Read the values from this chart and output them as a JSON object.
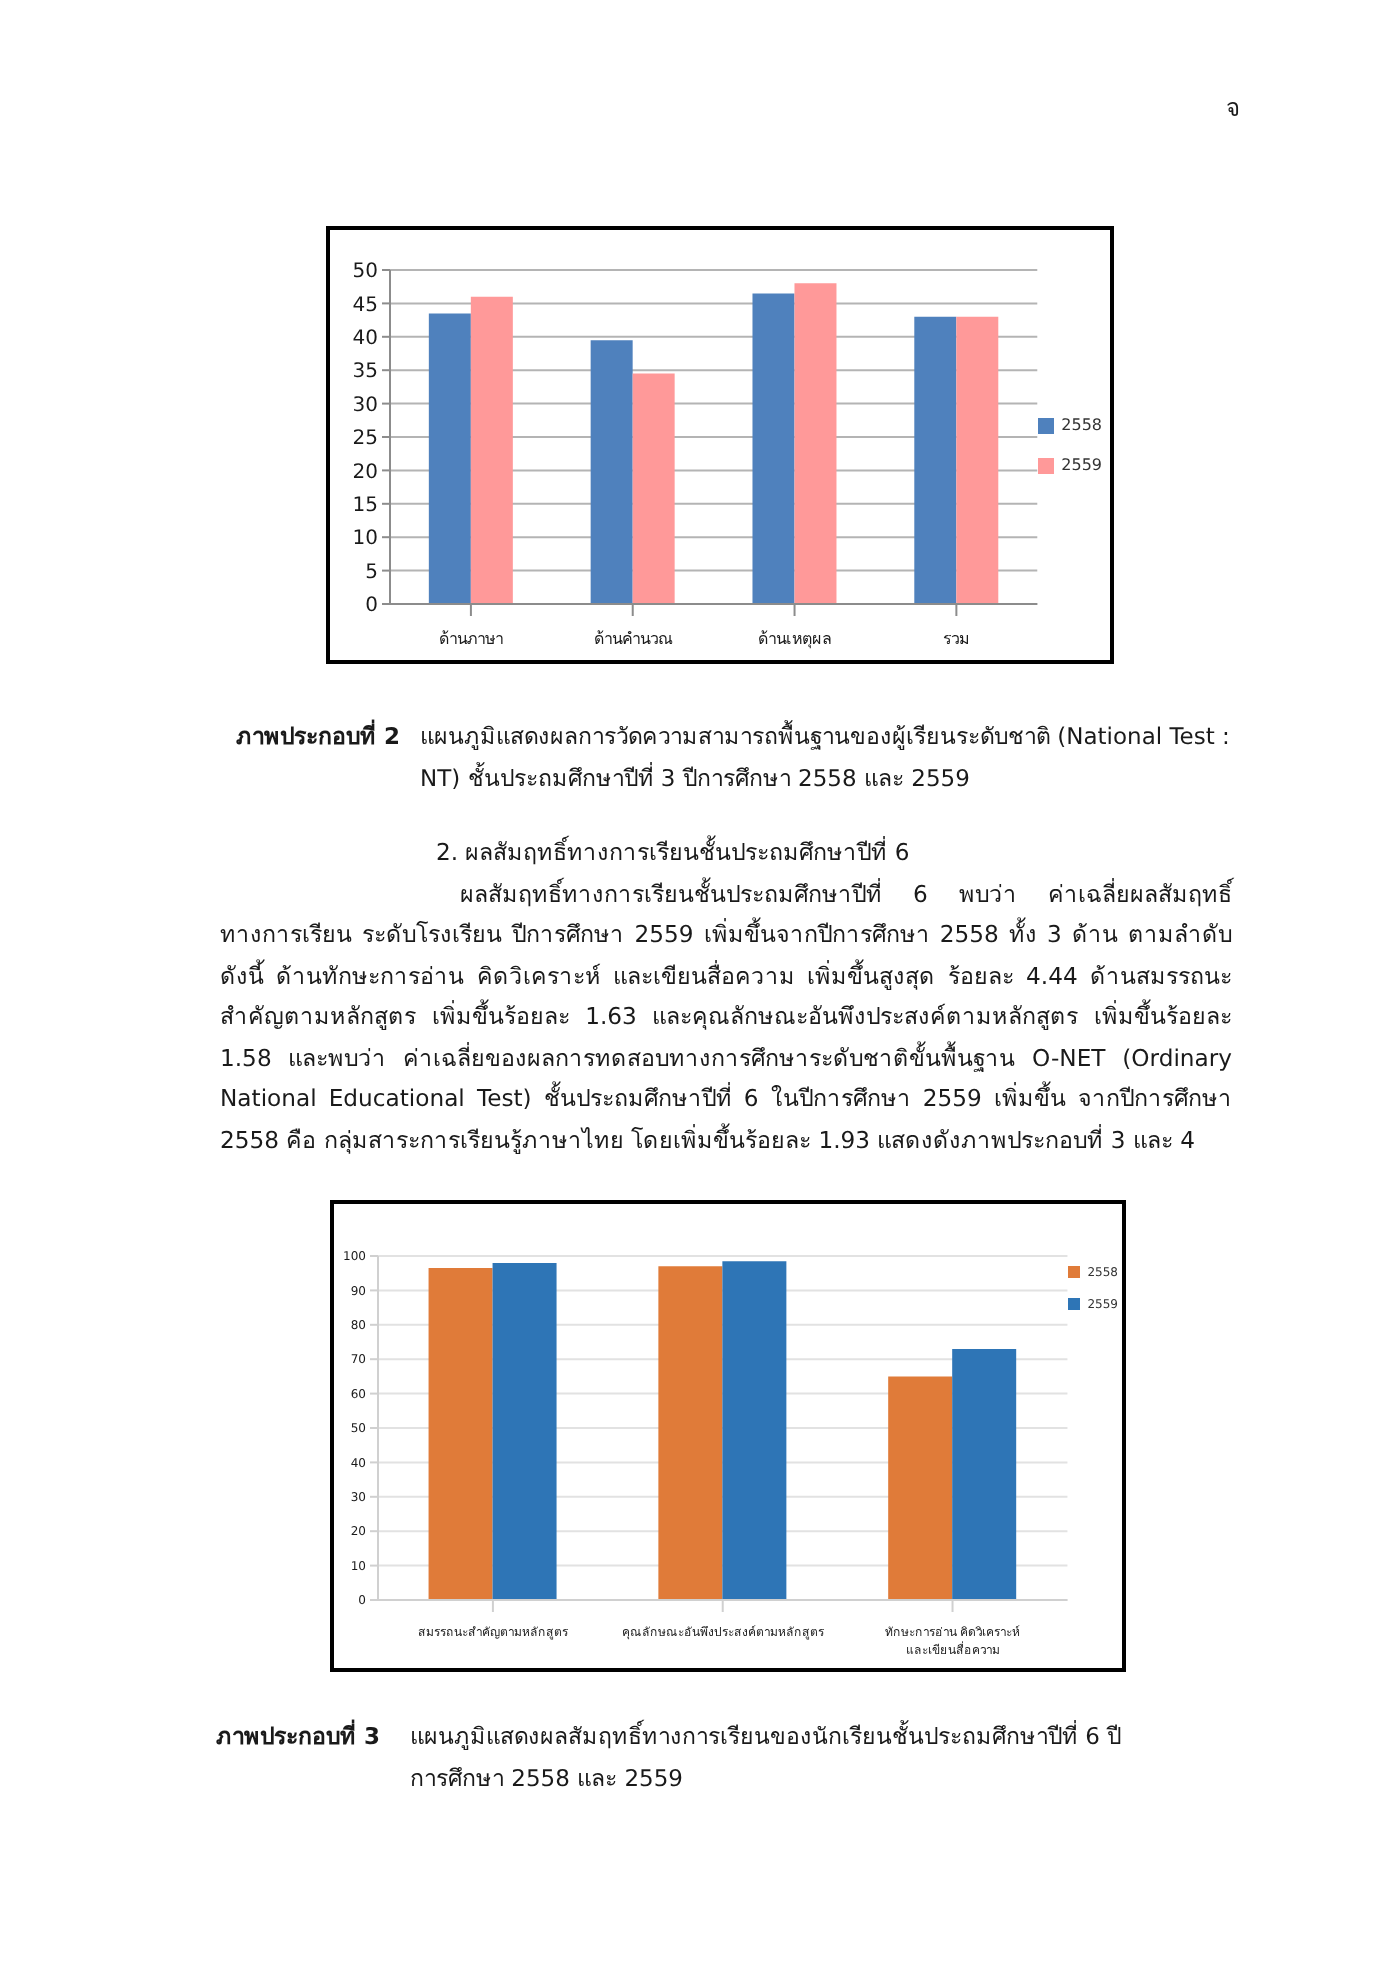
{
  "chart_data": [
    {
      "type": "bar",
      "title": "ภาพประกอบที่ 2",
      "subtitle": "แผนภูมิแสดงผลการวัดความสามารถพื้นฐานของผู้เรียนระดับชาติ (National Test : NT) ชั้นประถมศึกษาปีที่ 3 ปีการศึกษา 2558 และ 2559",
      "annotations": [
        "จ"
      ],
      "categories": [
        "ด้านภาษา",
        "ด้านคำนวณ",
        "ด้านเหตุผล",
        "รวม"
      ],
      "series": [
        {
          "name": "2558",
          "color": "#4f81bd",
          "values": [
            43.5,
            39.5,
            46.5,
            43
          ]
        },
        {
          "name": "2559",
          "color": "#ff9999",
          "values": [
            46,
            34.5,
            48,
            43
          ]
        }
      ],
      "ylim": [
        0,
        50
      ],
      "yticks": [
        0,
        5,
        10,
        15,
        20,
        25,
        30,
        35,
        40,
        45,
        50
      ],
      "grid": "y",
      "legend": "right"
    },
    {
      "type": "bar",
      "title": "ภาพประกอบที่ 3",
      "subtitle": "แผนภูมิแสดงผลสัมฤทธิ์ทางการเรียนของนักเรียนชั้นประถมศึกษาปีที่ 6 ปีการศึกษา 2558 และ 2559",
      "annotations": [
        "2. ผลสัมฤทธิ์ทางการเรียนชั้นประถมศึกษาปีที่ 6",
        "ผลสัมฤทธิ์ทางการเรียนชั้นประถมศึกษาปีที่ 6    พบว่า ค่าเฉลี่ยผลสัมฤทธิ์ทางการเรียน  ระดับโรงเรียน ปีการศึกษา 2559  เพิ่มขึ้นจากปีการศึกษา 2558  ทั้ง 3  ด้าน ตามลำดับดังนี้ ด้านทักษะการอ่าน คิดวิเคราะห์ และเขียนสื่อความ เพิ่มขึ้นสูงสุด ร้อยละ 4.44   ด้านสมรรถนะสำคัญตามหลักสูตร เพิ่มขึ้นร้อยละ 1.63   และคุณลักษณะอันพึงประสงค์ตามหลักสูตร เพิ่มขึ้นร้อยละ 1.58   และพบว่า ค่าเฉลี่ยของผลการทดสอบทางการศึกษาระดับชาติขั้นพื้นฐาน  O-NET  (Ordinary National Educational Test)  ชั้นประถมศึกษาปีที่ 6  ในปีการศึกษา 2559 เพิ่มขึ้น จากปีการศึกษา 2558 คือ กลุ่มสาระการเรียนรู้ภาษาไทย โดยเพิ่มขึ้นร้อยละ 1.93 แสดงดังภาพประกอบที่ 3 และ 4"
      ],
      "categories": [
        "สมรรถนะสำคัญตามหลักสูตร",
        "คุณลักษณะอันพึงประสงค์ตามหลักสูตร",
        "ทักษะการอ่าน คิดวิเคราะห์ และเขียนสื่อความ"
      ],
      "series": [
        {
          "name": "2558",
          "color": "#e07b39",
          "values": [
            96.5,
            97,
            65
          ]
        },
        {
          "name": "2559",
          "color": "#2e75b6",
          "values": [
            98,
            98.5,
            73
          ]
        }
      ],
      "ylim": [
        0,
        100
      ],
      "yticks": [
        0,
        10,
        20,
        30,
        40,
        50,
        60,
        70,
        80,
        90,
        100
      ],
      "grid": "y",
      "legend": "top right"
    }
  ]
}
